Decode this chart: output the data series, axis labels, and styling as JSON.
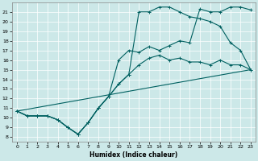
{
  "xlabel": "Humidex (Indice chaleur)",
  "bg_color": "#cce8e8",
  "line_color": "#006060",
  "xlim": [
    -0.5,
    23.5
  ],
  "ylim": [
    7.5,
    22
  ],
  "xticks": [
    0,
    1,
    2,
    3,
    4,
    5,
    6,
    7,
    8,
    9,
    10,
    11,
    12,
    13,
    14,
    15,
    16,
    17,
    18,
    19,
    20,
    21,
    22,
    23
  ],
  "yticks": [
    8,
    9,
    10,
    11,
    12,
    13,
    14,
    15,
    16,
    17,
    18,
    19,
    20,
    21
  ],
  "curve1_x": [
    0,
    1,
    2,
    3,
    4,
    5,
    6,
    7,
    8,
    9,
    10,
    11,
    12,
    13,
    14,
    15,
    16,
    17,
    18,
    19,
    20,
    21,
    22,
    23
  ],
  "curve1_y": [
    10.7,
    10.2,
    10.2,
    10.2,
    9.8,
    9.0,
    8.3,
    9.5,
    11.0,
    12.2,
    16.0,
    17.0,
    16.8,
    17.4,
    17.0,
    17.5,
    18.0,
    17.8,
    21.3,
    21.0,
    21.0,
    21.5,
    21.5,
    21.2
  ],
  "curve2_x": [
    0,
    1,
    2,
    3,
    4,
    5,
    6,
    7,
    8,
    9,
    10,
    11,
    12,
    13,
    14,
    15,
    16,
    17,
    18,
    19,
    20,
    21,
    22,
    23
  ],
  "curve2_y": [
    10.7,
    10.2,
    10.2,
    10.2,
    9.8,
    9.0,
    8.3,
    9.5,
    11.0,
    12.2,
    13.5,
    14.5,
    21.0,
    21.0,
    21.5,
    21.5,
    21.0,
    20.5,
    20.3,
    20.0,
    19.5,
    17.8,
    17.0,
    15.0
  ],
  "curve3_x": [
    0,
    1,
    2,
    3,
    4,
    5,
    6,
    7,
    8,
    9,
    10,
    11,
    12,
    13,
    14,
    15,
    16,
    17,
    18,
    19,
    20,
    21,
    22,
    23
  ],
  "curve3_y": [
    10.7,
    10.2,
    10.2,
    10.2,
    9.8,
    9.0,
    8.3,
    9.5,
    11.0,
    12.2,
    13.5,
    14.5,
    15.5,
    16.2,
    16.5,
    16.0,
    16.2,
    15.8,
    15.8,
    15.5,
    16.0,
    15.5,
    15.5,
    15.0
  ],
  "curve4_x": [
    0,
    23
  ],
  "curve4_y": [
    10.7,
    15.0
  ]
}
